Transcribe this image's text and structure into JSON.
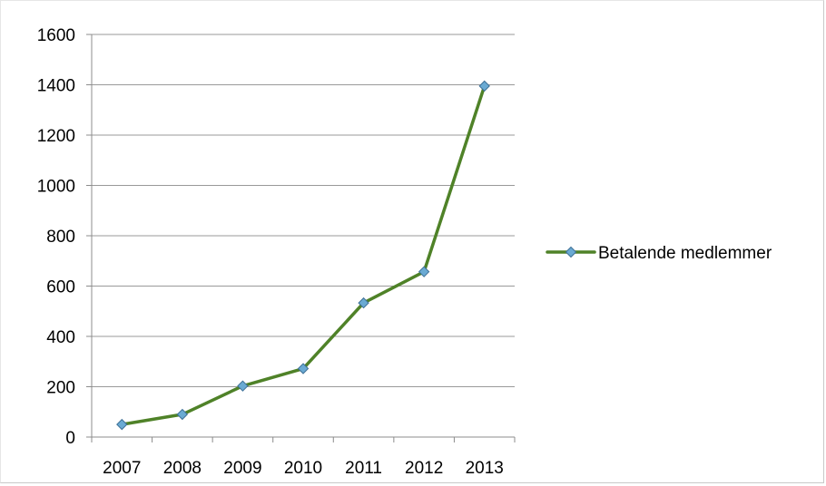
{
  "chart_data": {
    "type": "line",
    "title": "",
    "xlabel": "",
    "ylabel": "",
    "categories": [
      "2007",
      "2008",
      "2009",
      "2010",
      "2011",
      "2012",
      "2013"
    ],
    "series": [
      {
        "name": "Betalende medlemmer",
        "values": [
          50,
          90,
          203,
          272,
          533,
          657,
          1395
        ]
      }
    ],
    "ylim": [
      0,
      1600
    ],
    "yticks": [
      0,
      200,
      400,
      600,
      800,
      1000,
      1200,
      1400,
      1600
    ],
    "grid": true,
    "legend_position": "right",
    "colors": {
      "line": "#4f8228",
      "marker_fill": "#6aaad3",
      "marker_stroke": "#3e7096",
      "grid": "#9a9a9a",
      "axis": "#8c8c8c"
    }
  }
}
